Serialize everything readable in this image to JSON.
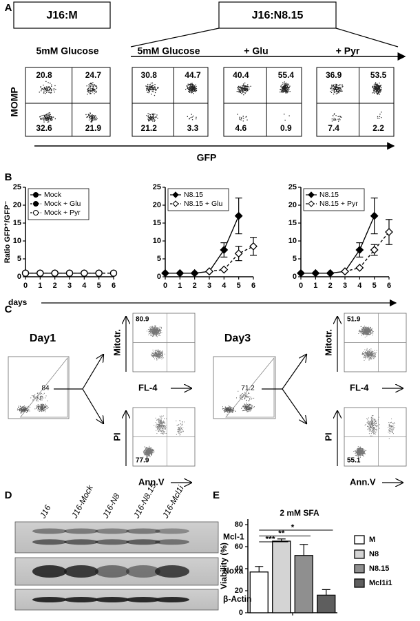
{
  "panel_labels": [
    "A",
    "B",
    "C",
    "D",
    "E"
  ],
  "panel_a": {
    "boxes": [
      "J16:M",
      "J16:N8.15"
    ],
    "conditions": [
      "5mM Glucose",
      "5mM Glucose",
      "+ Glu",
      "+ Pyr"
    ],
    "y_label": "MOMP",
    "x_label": "GFP",
    "plots": [
      {
        "quadrants": [
          20.8,
          24.7,
          32.6,
          21.9
        ]
      },
      {
        "quadrants": [
          30.8,
          44.7,
          21.2,
          3.3
        ]
      },
      {
        "quadrants": [
          40.4,
          55.4,
          4.6,
          0.9
        ]
      },
      {
        "quadrants": [
          36.9,
          53.5,
          7.4,
          2.2
        ]
      }
    ]
  },
  "chart_data": [
    {
      "type": "line",
      "y_label": "Ratio GFP⁺/GFP⁻",
      "x_label": "days",
      "x": [
        0,
        1,
        2,
        3,
        4,
        5,
        6
      ],
      "xlim": [
        0,
        6
      ],
      "xticks": [
        0,
        1,
        2,
        3,
        4,
        5,
        6
      ],
      "ylim": [
        0,
        25
      ],
      "yticks": [
        0,
        5,
        10,
        15,
        20,
        25
      ],
      "legend": "upper left",
      "series": [
        {
          "name": "Mock",
          "color": "#000000",
          "marker": "circle",
          "open": false,
          "dashed": false,
          "values": [
            1,
            1,
            1,
            1,
            1,
            1,
            null
          ]
        },
        {
          "name": "Mock + Glu",
          "color": "#000000",
          "marker": "circle",
          "open": false,
          "dashed": true,
          "values": [
            1,
            1,
            1,
            1,
            1,
            1,
            1
          ]
        },
        {
          "name": "Mock + Pyr",
          "color": "#000000",
          "marker": "circle",
          "open": true,
          "dashed": true,
          "values": [
            1,
            1,
            1,
            1,
            1,
            1,
            1
          ]
        }
      ]
    },
    {
      "type": "line",
      "x": [
        0,
        1,
        2,
        3,
        4,
        5,
        6
      ],
      "xlim": [
        0,
        6
      ],
      "xticks": [
        0,
        1,
        2,
        3,
        4,
        5,
        6
      ],
      "ylim": [
        0,
        25
      ],
      "yticks": [
        0,
        5,
        10,
        15,
        20,
        25
      ],
      "legend": "upper left",
      "series": [
        {
          "name": "N8.15",
          "color": "#000000",
          "marker": "diamond",
          "open": false,
          "dashed": false,
          "values": [
            1,
            1,
            1,
            1.5,
            7.5,
            17,
            null
          ],
          "errors": [
            null,
            null,
            null,
            null,
            2,
            5,
            null
          ]
        },
        {
          "name": "N8.15 + Glu",
          "color": "#000000",
          "marker": "diamond",
          "open": true,
          "dashed": true,
          "values": [
            null,
            null,
            null,
            1.5,
            2,
            6.5,
            8.5
          ],
          "errors": [
            null,
            null,
            null,
            null,
            null,
            2,
            2.5
          ]
        }
      ]
    },
    {
      "type": "line",
      "x": [
        0,
        1,
        2,
        3,
        4,
        5,
        6
      ],
      "xlim": [
        0,
        6
      ],
      "xticks": [
        0,
        1,
        2,
        3,
        4,
        5,
        6
      ],
      "ylim": [
        0,
        25
      ],
      "yticks": [
        0,
        5,
        10,
        15,
        20,
        25
      ],
      "legend": "upper left",
      "series": [
        {
          "name": "N8.15",
          "color": "#000000",
          "marker": "diamond",
          "open": false,
          "dashed": false,
          "values": [
            1,
            1,
            1,
            1.5,
            7.5,
            17,
            null
          ],
          "errors": [
            null,
            null,
            null,
            null,
            2,
            5,
            null
          ]
        },
        {
          "name": "N8.15 + Pyr",
          "color": "#000000",
          "marker": "diamond",
          "open": true,
          "dashed": true,
          "values": [
            null,
            null,
            null,
            1.5,
            2.5,
            7.5,
            12.5
          ],
          "errors": [
            null,
            null,
            null,
            null,
            null,
            1.5,
            3.5
          ]
        }
      ]
    },
    {
      "type": "bar",
      "title": "2 mM SFA",
      "y_label": "Viability (%)",
      "categories": [
        "M",
        "N8",
        "N8.15",
        "Mcl1i1"
      ],
      "values": [
        37,
        65,
        52,
        16
      ],
      "errors": [
        5,
        2,
        10,
        5
      ],
      "colors": [
        "#ffffff",
        "#d4d4d4",
        "#8f8f8f",
        "#5e5e5e"
      ],
      "ylim": [
        0,
        85
      ],
      "yticks": [
        0,
        20,
        40,
        60,
        80
      ],
      "legend": "right",
      "annotations": [
        "***",
        "**",
        "*"
      ]
    }
  ],
  "panel_c": {
    "groups": [
      {
        "title": "Day1",
        "gate": 84,
        "plots": [
          {
            "y_label": "Mitotr.",
            "x_label": "FL-4",
            "value": 80.9
          },
          {
            "y_label": "PI",
            "x_label": "Ann.V",
            "value": 77.9
          }
        ]
      },
      {
        "title": "Day3",
        "gate": 71.2,
        "plots": [
          {
            "y_label": "Mitotr.",
            "x_label": "FL-4",
            "value": 51.9
          },
          {
            "y_label": "PI",
            "x_label": "Ann.V",
            "value": 55.1
          }
        ]
      }
    ]
  },
  "panel_d": {
    "lanes": [
      "J16",
      "J16-Mock",
      "J16-N8",
      "J16-N8.15",
      "J16-Mcl1i"
    ],
    "bands": [
      "Mcl-1",
      "Noxa",
      "β-Actin"
    ]
  }
}
